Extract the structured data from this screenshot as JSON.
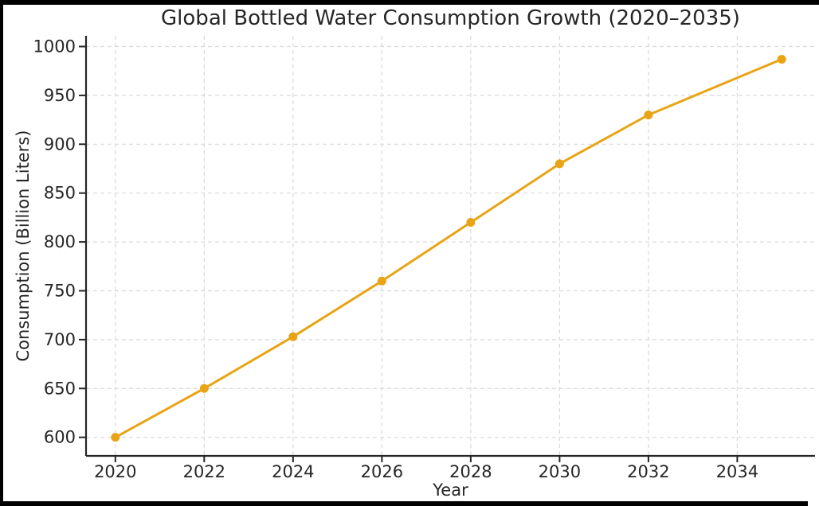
{
  "frame": {
    "border_color": "#000000"
  },
  "chart_data": {
    "type": "line",
    "title": "Global Bottled Water Consumption Growth (2020–2035)",
    "xlabel": "Year",
    "ylabel": "Consumption (Billion Liters)",
    "x": [
      2020,
      2022,
      2024,
      2026,
      2028,
      2030,
      2032,
      2035
    ],
    "values": [
      600,
      650,
      703,
      760,
      820,
      880,
      930,
      987
    ],
    "x_ticks": [
      2020,
      2022,
      2024,
      2026,
      2028,
      2030,
      2032,
      2034
    ],
    "y_ticks": [
      600,
      650,
      700,
      750,
      800,
      850,
      900,
      950,
      1000
    ],
    "xlim": [
      2019.34,
      2035.75
    ],
    "ylim": [
      581,
      1011
    ],
    "grid": true,
    "grid_style": "dashed",
    "grid_color": "#d9d9d9",
    "legend": "none",
    "line_color": "#E8A414",
    "marker": "circle",
    "marker_color": "#E8A414",
    "spine_color": "#262626",
    "text_color": "#262626",
    "background": "#ffffff"
  }
}
